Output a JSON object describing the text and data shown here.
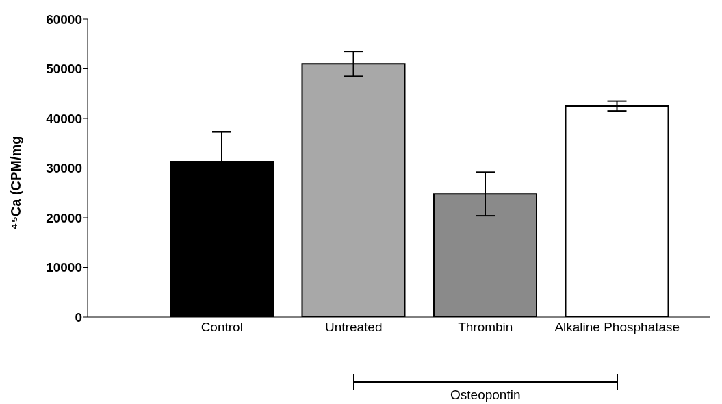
{
  "chart_data": {
    "type": "bar",
    "ylabel": "⁴⁵Ca (CPM/mg",
    "categories": [
      "Control",
      "Untreated",
      "Thrombin",
      "Alkaline Phosphatase"
    ],
    "values": [
      31300,
      51000,
      24800,
      42500
    ],
    "errors": [
      6000,
      2500,
      4400,
      1000
    ],
    "colors": [
      "#000000",
      "#a8a8a8",
      "#8a8a8a",
      "#ffffff"
    ],
    "ylim": [
      0,
      60000
    ],
    "yticks": [
      0,
      10000,
      20000,
      30000,
      40000,
      50000,
      60000
    ],
    "annotations": [
      "Osteopontin"
    ]
  }
}
